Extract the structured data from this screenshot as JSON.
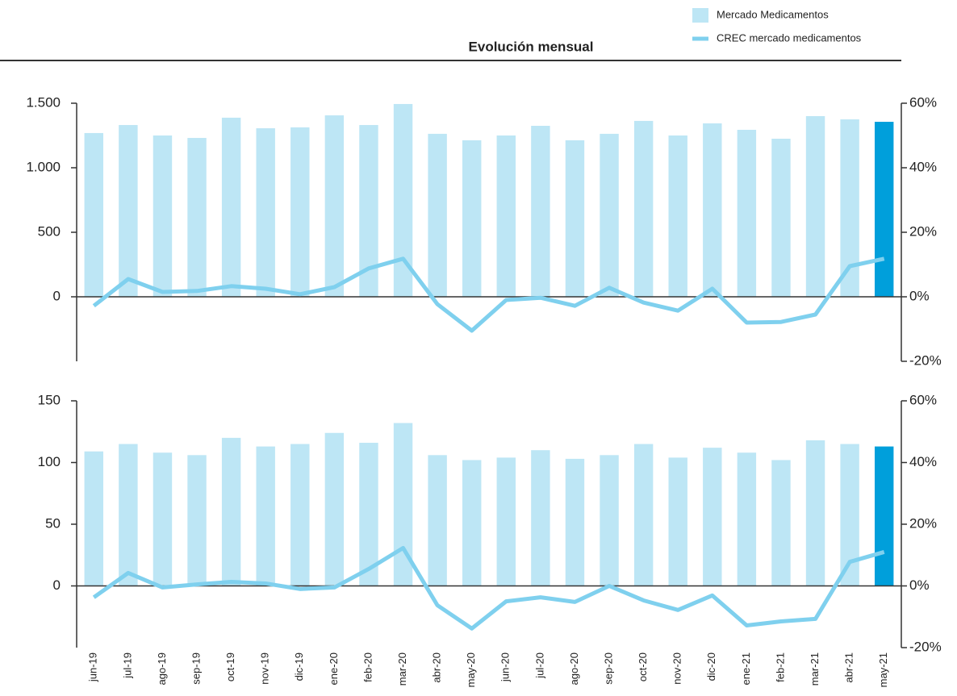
{
  "chart_data": [
    {
      "type": "bar-line",
      "title": "Evolución mensual",
      "ylim": [
        -500,
        1500
      ],
      "yticks": [
        0,
        500,
        {
          "value": 1000,
          "label": "1.000"
        },
        {
          "value": 1500,
          "label": "1.500"
        }
      ],
      "y2lim": [
        -20,
        60
      ],
      "y2ticks": [
        {
          "value": -20,
          "label": "-20%"
        },
        {
          "value": 0,
          "label": "0%"
        },
        {
          "value": 20,
          "label": "20%"
        },
        {
          "value": 40,
          "label": "40%"
        },
        {
          "value": 60,
          "label": "60%"
        }
      ],
      "series": [
        {
          "name": "Mercado Medicamentos",
          "type": "bar",
          "color": "#bde6f5",
          "colors": [
            "#bde6f5",
            "#bde6f5",
            "#bde6f5",
            "#bde6f5",
            "#bde6f5",
            "#bde6f5",
            "#bde6f5",
            "#bde6f5",
            "#bde6f5",
            "#bde6f5",
            "#bde6f5",
            "#bde6f5",
            "#bde6f5",
            "#bde6f5",
            "#bde6f5",
            "#bde6f5",
            "#bde6f5",
            "#bde6f5",
            "#bde6f5",
            "#bde6f5",
            "#bde6f5",
            "#bde6f5",
            "#bde6f5",
            "#009fdb"
          ],
          "values": [
            1269,
            1331,
            1250,
            1231,
            1388,
            1306,
            1313,
            1406,
            1331,
            1494,
            1263,
            1213,
            1250,
            1325,
            1213,
            1263,
            1363,
            1250,
            1344,
            1294,
            1225,
            1400,
            1375,
            1356
          ]
        },
        {
          "name": "CREC mercado medicamentos",
          "type": "line",
          "axis": "y2",
          "color": "#7fd0ee",
          "values": [
            -2.8,
            5.5,
            1.5,
            1.8,
            3.3,
            2.5,
            0.8,
            3,
            8.8,
            11.8,
            -2.3,
            -10.5,
            -1,
            -0.3,
            -2.8,
            2.8,
            -1.8,
            -4.3,
            2.5,
            -8,
            -7.8,
            -5.5,
            9.5,
            11.8
          ]
        }
      ]
    },
    {
      "type": "bar-line",
      "categories": [
        "jun-19",
        "jul-19",
        "ago-19",
        "sep-19",
        "oct-19",
        "nov-19",
        "dic-19",
        "ene-20",
        "feb-20",
        "mar-20",
        "abr-20",
        "may-20",
        "jun-20",
        "jul-20",
        "ago-20",
        "sep-20",
        "oct-20",
        "nov-20",
        "dic-20",
        "ene-21",
        "feb-21",
        "mar-21",
        "abr-21",
        "may-21"
      ],
      "ylim": [
        -50,
        150
      ],
      "yticks": [
        0,
        50,
        100,
        150
      ],
      "y2lim": [
        -20,
        60
      ],
      "y2ticks": [
        {
          "value": -20,
          "label": "-20%"
        },
        {
          "value": 0,
          "label": "0%"
        },
        {
          "value": 20,
          "label": "20%"
        },
        {
          "value": 40,
          "label": "40%"
        },
        {
          "value": 60,
          "label": "60%"
        }
      ],
      "series": [
        {
          "type": "bar",
          "color": "#bde6f5",
          "colors": [
            "#bde6f5",
            "#bde6f5",
            "#bde6f5",
            "#bde6f5",
            "#bde6f5",
            "#bde6f5",
            "#bde6f5",
            "#bde6f5",
            "#bde6f5",
            "#bde6f5",
            "#bde6f5",
            "#bde6f5",
            "#bde6f5",
            "#bde6f5",
            "#bde6f5",
            "#bde6f5",
            "#bde6f5",
            "#bde6f5",
            "#bde6f5",
            "#bde6f5",
            "#bde6f5",
            "#bde6f5",
            "#bde6f5",
            "#009fdb"
          ],
          "values": [
            109,
            115,
            108,
            106,
            120,
            113,
            115,
            124,
            116,
            132,
            106,
            102,
            104,
            110,
            103,
            106,
            115,
            104,
            112,
            108,
            102,
            118,
            115,
            113
          ]
        },
        {
          "type": "line",
          "axis": "y2",
          "color": "#7fd0ee",
          "values": [
            -3.7,
            4.2,
            -0.5,
            0.5,
            1.3,
            0.8,
            -1,
            -0.5,
            5.5,
            12.3,
            -6.3,
            -13.8,
            -5,
            -3.7,
            -5.2,
            0,
            -4.7,
            -7.8,
            -3.1,
            -12.8,
            -11.5,
            -10.7,
            7.8,
            11
          ]
        }
      ]
    }
  ]
}
